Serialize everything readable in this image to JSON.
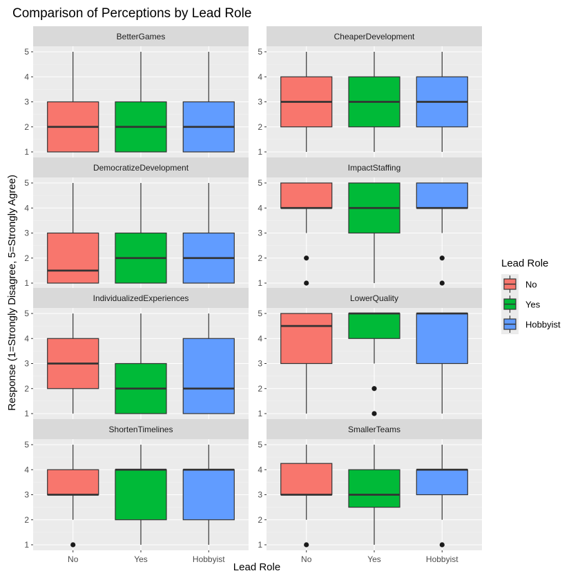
{
  "title": "Comparison of Perceptions by Lead Role",
  "chart_data": {
    "type": "boxplot",
    "title": "Comparison of Perceptions by Lead Role",
    "xlabel": "Lead Role",
    "ylabel": "Response (1=Strongly Disagree, 5=Strongly Agree)",
    "ylim": [
      1,
      5
    ],
    "yticks": [
      1,
      2,
      3,
      4,
      5
    ],
    "categories": [
      "No",
      "Yes",
      "Hobbyist"
    ],
    "colors": {
      "No": "#F8766D",
      "Yes": "#00BA38",
      "Hobbyist": "#619CFF"
    },
    "legend": {
      "title": "Lead Role",
      "entries": [
        "No",
        "Yes",
        "Hobbyist"
      ],
      "position": "right"
    },
    "grid": true,
    "panels": [
      {
        "name": "BetterGames",
        "boxes": [
          {
            "group": "No",
            "min": 1,
            "q1": 1,
            "median": 2,
            "q3": 3,
            "max": 5,
            "outliers": []
          },
          {
            "group": "Yes",
            "min": 1,
            "q1": 1,
            "median": 2,
            "q3": 3,
            "max": 5,
            "outliers": []
          },
          {
            "group": "Hobbyist",
            "min": 1,
            "q1": 1,
            "median": 2,
            "q3": 3,
            "max": 5,
            "outliers": []
          }
        ]
      },
      {
        "name": "CheaperDevelopment",
        "boxes": [
          {
            "group": "No",
            "min": 1,
            "q1": 2,
            "median": 3,
            "q3": 4,
            "max": 5,
            "outliers": []
          },
          {
            "group": "Yes",
            "min": 1,
            "q1": 2,
            "median": 3,
            "q3": 4,
            "max": 5,
            "outliers": []
          },
          {
            "group": "Hobbyist",
            "min": 1,
            "q1": 2,
            "median": 3,
            "q3": 4,
            "max": 5,
            "outliers": []
          }
        ]
      },
      {
        "name": "DemocratizeDevelopment",
        "boxes": [
          {
            "group": "No",
            "min": 1,
            "q1": 1,
            "median": 1.5,
            "q3": 3,
            "max": 5,
            "outliers": []
          },
          {
            "group": "Yes",
            "min": 1,
            "q1": 1,
            "median": 2,
            "q3": 3,
            "max": 5,
            "outliers": []
          },
          {
            "group": "Hobbyist",
            "min": 1,
            "q1": 1,
            "median": 2,
            "q3": 3,
            "max": 5,
            "outliers": []
          }
        ]
      },
      {
        "name": "ImpactStaffing",
        "boxes": [
          {
            "group": "No",
            "min": 3,
            "q1": 4,
            "median": 4,
            "q3": 5,
            "max": 5,
            "outliers": [
              1,
              2
            ]
          },
          {
            "group": "Yes",
            "min": 1,
            "q1": 3,
            "median": 4,
            "q3": 5,
            "max": 5,
            "outliers": []
          },
          {
            "group": "Hobbyist",
            "min": 3,
            "q1": 4,
            "median": 4,
            "q3": 5,
            "max": 5,
            "outliers": [
              1,
              2
            ]
          }
        ]
      },
      {
        "name": "IndividualizedExperiences",
        "boxes": [
          {
            "group": "No",
            "min": 1,
            "q1": 2,
            "median": 3,
            "q3": 4,
            "max": 5,
            "outliers": []
          },
          {
            "group": "Yes",
            "min": 1,
            "q1": 1,
            "median": 2,
            "q3": 3,
            "max": 5,
            "outliers": []
          },
          {
            "group": "Hobbyist",
            "min": 1,
            "q1": 1,
            "median": 2,
            "q3": 4,
            "max": 5,
            "outliers": []
          }
        ]
      },
      {
        "name": "LowerQuality",
        "boxes": [
          {
            "group": "No",
            "min": 1,
            "q1": 3,
            "median": 4.5,
            "q3": 5,
            "max": 5,
            "outliers": []
          },
          {
            "group": "Yes",
            "min": 3,
            "q1": 4,
            "median": 5,
            "q3": 5,
            "max": 5,
            "outliers": [
              1,
              2
            ]
          },
          {
            "group": "Hobbyist",
            "min": 1,
            "q1": 3,
            "median": 5,
            "q3": 5,
            "max": 5,
            "outliers": []
          }
        ]
      },
      {
        "name": "ShortenTimelines",
        "boxes": [
          {
            "group": "No",
            "min": 2,
            "q1": 3,
            "median": 3,
            "q3": 4,
            "max": 5,
            "outliers": [
              1
            ]
          },
          {
            "group": "Yes",
            "min": 1,
            "q1": 2,
            "median": 4,
            "q3": 4,
            "max": 5,
            "outliers": []
          },
          {
            "group": "Hobbyist",
            "min": 1,
            "q1": 2,
            "median": 4,
            "q3": 4,
            "max": 5,
            "outliers": []
          }
        ]
      },
      {
        "name": "SmallerTeams",
        "boxes": [
          {
            "group": "No",
            "min": 2,
            "q1": 3,
            "median": 3,
            "q3": 4.25,
            "max": 5,
            "outliers": [
              1
            ]
          },
          {
            "group": "Yes",
            "min": 1,
            "q1": 2.5,
            "median": 3,
            "q3": 4,
            "max": 5,
            "outliers": []
          },
          {
            "group": "Hobbyist",
            "min": 2,
            "q1": 3,
            "median": 4,
            "q3": 4,
            "max": 5,
            "outliers": [
              1
            ]
          }
        ]
      }
    ]
  }
}
